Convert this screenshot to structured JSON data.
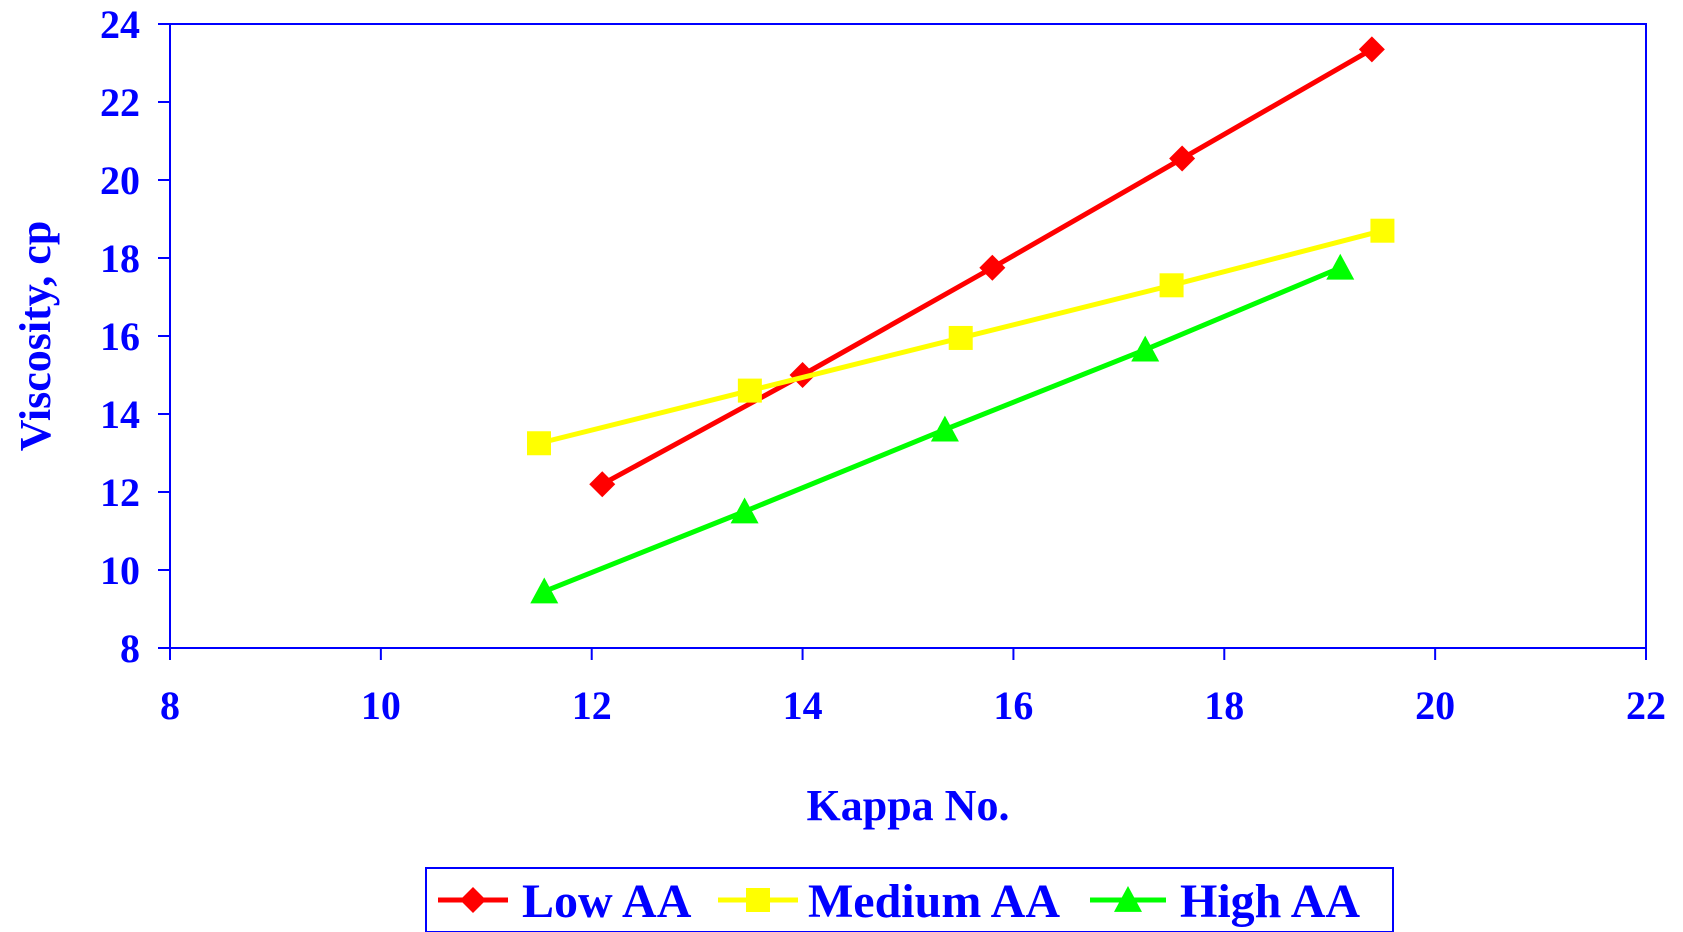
{
  "chart_data": {
    "type": "line",
    "title": "",
    "xlabel": "Kappa No.",
    "ylabel": "Viscosity, cp",
    "xlim": [
      8,
      22
    ],
    "ylim": [
      8,
      24
    ],
    "x_ticks": [
      8,
      10,
      12,
      14,
      16,
      18,
      20,
      22
    ],
    "y_ticks": [
      8,
      10,
      12,
      14,
      16,
      18,
      20,
      22,
      24
    ],
    "grid": false,
    "legend_position": "bottom",
    "axis_color": "#0000ff",
    "text_color": "#0000ff",
    "series": [
      {
        "name": "Low AA",
        "color": "#ff0000",
        "marker": "diamond",
        "x": [
          12.1,
          14.0,
          15.8,
          17.6,
          19.4
        ],
        "y": [
          12.2,
          15.0,
          17.75,
          20.55,
          23.35
        ]
      },
      {
        "name": "Medium AA",
        "color": "#ffff00",
        "marker": "square",
        "x": [
          11.5,
          13.5,
          15.5,
          17.5,
          19.5
        ],
        "y": [
          13.25,
          14.6,
          15.95,
          17.3,
          18.7
        ]
      },
      {
        "name": "High AA",
        "color": "#00ff00",
        "marker": "triangle",
        "x": [
          11.55,
          13.45,
          15.35,
          17.25,
          19.1
        ],
        "y": [
          9.45,
          11.5,
          13.6,
          15.65,
          17.75
        ]
      }
    ]
  }
}
